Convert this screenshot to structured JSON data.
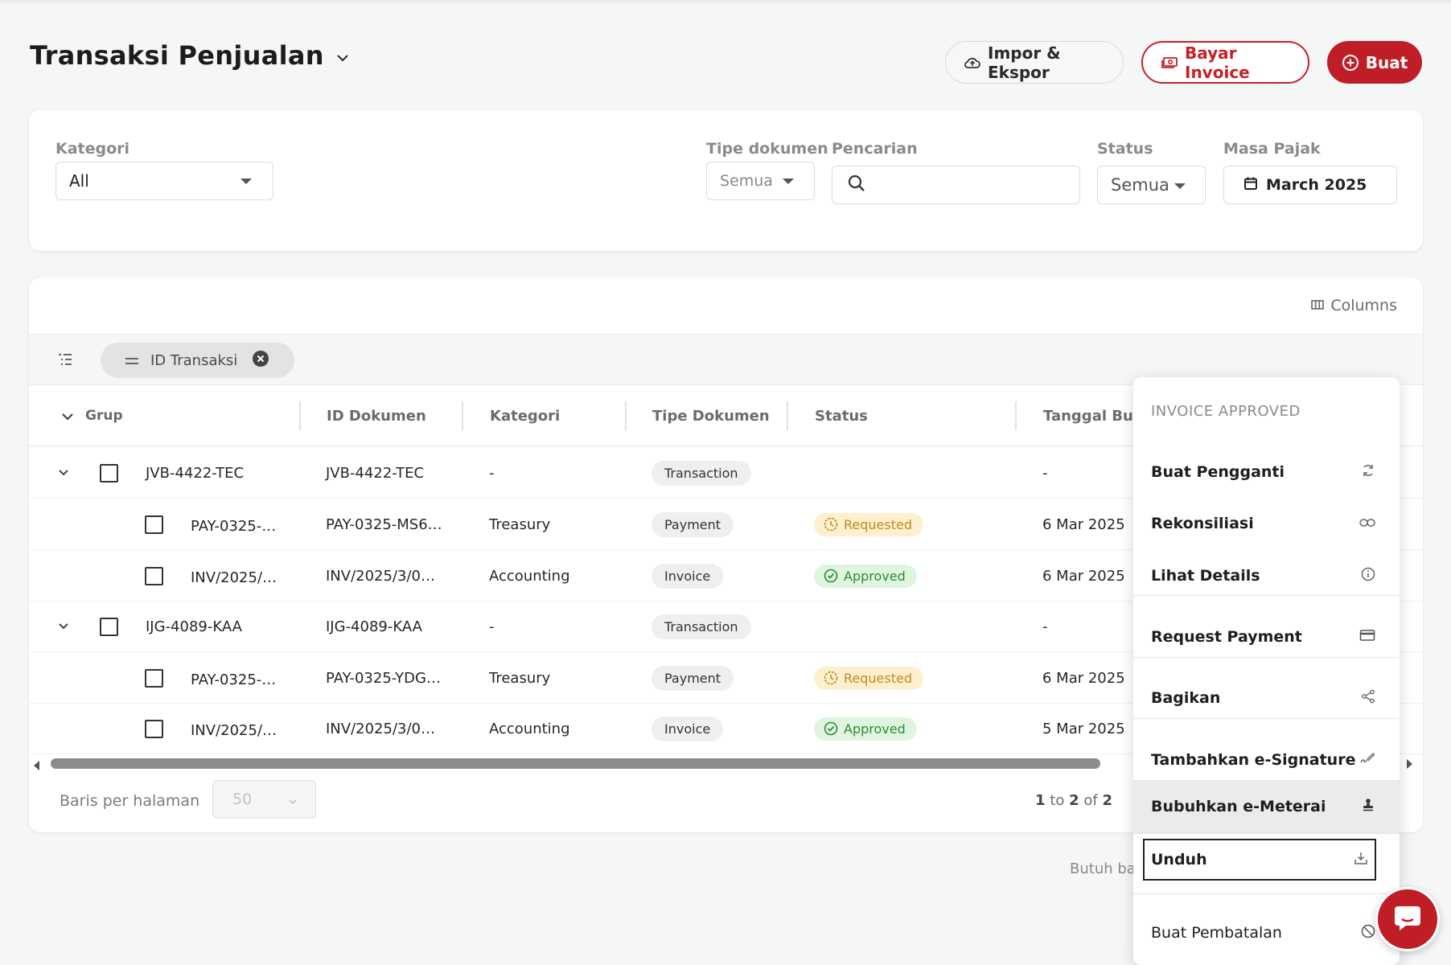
{
  "header": {
    "title": "Transaksi Penjualan",
    "import_export": "Impor & Ekspor",
    "pay_invoice": "Bayar Invoice",
    "create": "Buat"
  },
  "filters": {
    "kategori_label": "Kategori",
    "kategori_value": "All",
    "tipe_label": "Tipe dokumen",
    "tipe_value": "Semua",
    "search_label": "Pencarian",
    "search_value": "",
    "status_label": "Status",
    "status_value": "Semua",
    "masa_label": "Masa Pajak",
    "masa_value": "March 2025"
  },
  "table": {
    "columns_label": "Columns",
    "group_chip": "ID Transaksi",
    "headers": {
      "grup": "Grup",
      "id_dokumen": "ID Dokumen",
      "kategori": "Kategori",
      "tipe": "Tipe Dokumen",
      "status": "Status",
      "tanggal": "Tanggal Bua"
    },
    "rows": [
      {
        "grup": "JVB-4422-TEC",
        "id": "JVB-4422-TEC",
        "kategori": "-",
        "tipe": "Transaction",
        "status": "",
        "tanggal": "-"
      },
      {
        "grup": "PAY-0325-…",
        "id": "PAY-0325-MS6…",
        "kategori": "Treasury",
        "tipe": "Payment",
        "status": "Requested",
        "tanggal": "6 Mar 2025"
      },
      {
        "grup": "INV/2025/…",
        "id": "INV/2025/3/0…",
        "kategori": "Accounting",
        "tipe": "Invoice",
        "status": "Approved",
        "tanggal": "6 Mar 2025"
      },
      {
        "grup": "IJG-4089-KAA",
        "id": "IJG-4089-KAA",
        "kategori": "-",
        "tipe": "Transaction",
        "status": "",
        "tanggal": "-"
      },
      {
        "grup": "PAY-0325-…",
        "id": "PAY-0325-YDG…",
        "kategori": "Treasury",
        "tipe": "Payment",
        "status": "Requested",
        "tanggal": "6 Mar 2025"
      },
      {
        "grup": "INV/2025/…",
        "id": "INV/2025/3/0…",
        "kategori": "Accounting",
        "tipe": "Invoice",
        "status": "Approved",
        "tanggal": "5 Mar 2025"
      }
    ],
    "rows_per_page_label": "Baris per halaman",
    "rows_per_page": "50",
    "pager": {
      "from": "1",
      "to_word": "to",
      "to": "2",
      "of_word": "of",
      "total": "2"
    }
  },
  "help_text": "Butuh ba",
  "menu": {
    "header": "INVOICE APPROVED",
    "items": [
      {
        "label": "Buat Pengganti",
        "icon": "refresh-icon"
      },
      {
        "label": "Rekonsiliasi",
        "icon": "link-icon"
      },
      {
        "label": "Lihat Details",
        "icon": "info-icon"
      },
      {
        "label": "Request Payment",
        "icon": "card-icon"
      },
      {
        "label": "Bagikan",
        "icon": "share-icon"
      },
      {
        "label": "Tambahkan e-Signature",
        "icon": "signature-icon"
      },
      {
        "label": "Bubuhkan e-Meterai",
        "icon": "stamp-icon"
      },
      {
        "label": "Unduh",
        "icon": "download-icon"
      },
      {
        "label": "Buat Pembatalan",
        "icon": "block-icon"
      }
    ]
  },
  "colors": {
    "brand_red": "#c01e26",
    "requested_bg": "#fdf0cf",
    "approved_bg": "#dff5df"
  }
}
